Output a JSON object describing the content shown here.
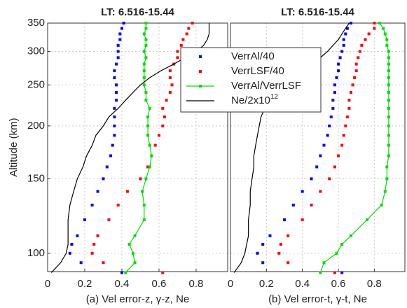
{
  "chart_data": [
    {
      "type": "scatter",
      "title": "LT: 6.516-15.44",
      "xlabel": "(a)  Vel  error-z, γ-z, Ne",
      "ylabel": "Altitude (km)",
      "log_y": true,
      "grid": true,
      "xlim": [
        0,
        0.97
      ],
      "xticks": [
        0,
        0.2,
        0.4,
        0.6,
        0.8
      ],
      "ylim": [
        90.5,
        350
      ],
      "yticks": [
        100,
        150,
        200,
        250,
        300,
        350
      ],
      "y": [
        90,
        95,
        100,
        105,
        110,
        120,
        130,
        140,
        150,
        160,
        170,
        180,
        190,
        200,
        210,
        220,
        230,
        240,
        250,
        260,
        270,
        280,
        290,
        300,
        310,
        320,
        330,
        340,
        350
      ],
      "series": [
        {
          "name": "VerrAl/40",
          "color": "#0000ff",
          "style": "markers",
          "values": [
            0.4,
            0.18,
            0.12,
            0.13,
            0.16,
            0.2,
            0.24,
            0.27,
            0.3,
            0.32,
            0.34,
            0.35,
            0.36,
            0.36,
            0.36,
            0.36,
            0.37,
            0.37,
            0.37,
            0.36,
            0.36,
            0.37,
            0.38,
            0.38,
            0.38,
            0.39,
            0.39,
            0.4,
            0.41
          ]
        },
        {
          "name": "VerrLSF/40",
          "color": "#ff0000",
          "style": "markers",
          "values": [
            0.62,
            0.3,
            0.24,
            0.25,
            0.27,
            0.33,
            0.38,
            0.43,
            0.5,
            0.54,
            0.56,
            0.58,
            0.6,
            0.62,
            0.63,
            0.62,
            0.64,
            0.66,
            0.67,
            0.66,
            0.66,
            0.68,
            0.7,
            0.7,
            0.72,
            0.73,
            0.75,
            0.76,
            0.78
          ]
        },
        {
          "name": "VerrAl/VerrLSF",
          "color": "#00dd00",
          "style": "line-markers",
          "values": [
            0.42,
            0.47,
            0.46,
            0.44,
            0.47,
            0.52,
            0.52,
            0.51,
            0.53,
            0.55,
            0.56,
            0.55,
            0.54,
            0.54,
            0.54,
            0.55,
            0.53,
            0.53,
            0.52,
            0.52,
            0.52,
            0.52,
            0.53,
            0.52,
            0.53,
            0.53,
            0.52,
            0.53,
            0.53
          ]
        },
        {
          "name": "Ne/2x10",
          "name_superscript": "12",
          "color": "#000000",
          "style": "line",
          "values": [
            0.02,
            0.07,
            0.1,
            0.11,
            0.11,
            0.11,
            0.12,
            0.14,
            0.16,
            0.19,
            0.21,
            0.24,
            0.26,
            0.3,
            0.33,
            0.38,
            0.42,
            0.46,
            0.5,
            0.55,
            0.61,
            0.68,
            0.74,
            0.8,
            0.84,
            0.86,
            0.87,
            0.87,
            0.87
          ]
        }
      ]
    },
    {
      "type": "scatter",
      "title": "LT: 6.516-15.44",
      "xlabel": "(b)  Vel  error-t, γ-t, Ne",
      "log_y": true,
      "grid": true,
      "xlim": [
        0,
        0.97
      ],
      "xticks": [
        0,
        0.2,
        0.4,
        0.6,
        0.8
      ],
      "ylim": [
        90.5,
        350
      ],
      "y": [
        90,
        95,
        100,
        105,
        110,
        120,
        130,
        140,
        150,
        160,
        170,
        180,
        190,
        200,
        210,
        220,
        230,
        240,
        250,
        260,
        270,
        280,
        290,
        300,
        310,
        320,
        330,
        340,
        350
      ],
      "series": [
        {
          "color": "#0000ff",
          "style": "markers",
          "values": [
            0.62,
            0.18,
            0.15,
            0.18,
            0.22,
            0.3,
            0.35,
            0.4,
            0.45,
            0.48,
            0.5,
            0.52,
            0.54,
            0.55,
            0.56,
            0.57,
            0.57,
            0.58,
            0.58,
            0.59,
            0.6,
            0.6,
            0.61,
            0.62,
            0.63,
            0.63,
            0.64,
            0.65,
            0.67
          ]
        },
        {
          "color": "#ff0000",
          "style": "markers",
          "values": [
            0.58,
            0.32,
            0.27,
            0.28,
            0.32,
            0.4,
            0.45,
            0.5,
            0.55,
            0.58,
            0.6,
            0.62,
            0.63,
            0.64,
            0.65,
            0.66,
            0.66,
            0.67,
            0.68,
            0.69,
            0.7,
            0.7,
            0.71,
            0.72,
            0.73,
            0.75,
            0.77,
            0.8,
            0.8
          ]
        },
        {
          "color": "#00dd00",
          "style": "line-markers",
          "values": [
            0.5,
            0.52,
            0.59,
            0.62,
            0.67,
            0.76,
            0.84,
            0.86,
            0.87,
            0.87,
            0.88,
            0.88,
            0.88,
            0.88,
            0.88,
            0.88,
            0.88,
            0.88,
            0.88,
            0.88,
            0.88,
            0.88,
            0.88,
            0.88,
            0.87,
            0.87,
            0.86,
            0.85,
            0.83
          ]
        },
        {
          "color": "#000000",
          "style": "line",
          "values": [
            0.02,
            0.06,
            0.08,
            0.09,
            0.1,
            0.1,
            0.11,
            0.11,
            0.12,
            0.13,
            0.13,
            0.14,
            0.15,
            0.16,
            0.17,
            0.19,
            0.21,
            0.24,
            0.28,
            0.33,
            0.38,
            0.44,
            0.5,
            0.54,
            0.57,
            0.6,
            0.62,
            0.64,
            0.66
          ]
        }
      ]
    }
  ]
}
